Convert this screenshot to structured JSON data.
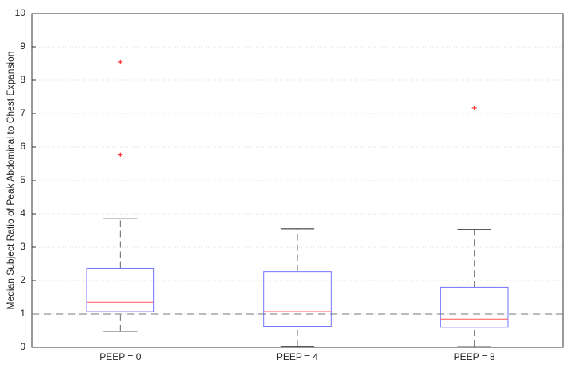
{
  "chart_data": {
    "type": "box",
    "ylabel": "Median Subject Ratio of Peak Abdominal to Chest Expansion",
    "categories": [
      "PEEP = 0",
      "PEEP = 4",
      "PEEP = 8"
    ],
    "boxes": [
      {
        "whislo": 0.48,
        "q1": 1.07,
        "med": 1.35,
        "q3": 2.37,
        "whishi": 3.85,
        "fliers": [
          8.55,
          5.77
        ]
      },
      {
        "whislo": 0.03,
        "q1": 0.63,
        "med": 1.07,
        "q3": 2.27,
        "whishi": 3.55,
        "fliers": []
      },
      {
        "whislo": 0.02,
        "q1": 0.6,
        "med": 0.85,
        "q3": 1.8,
        "whishi": 3.53,
        "fliers": [
          7.17
        ]
      }
    ],
    "reference_line": 1,
    "box_color": "#7373ff",
    "median_color": "#ff5555",
    "whisker_color": "#666666",
    "flier_color": "#ff3333",
    "ylim": [
      0,
      10
    ],
    "yticks": [
      0,
      1,
      2,
      3,
      4,
      5,
      6,
      7,
      8,
      9,
      10
    ],
    "grid": true
  }
}
